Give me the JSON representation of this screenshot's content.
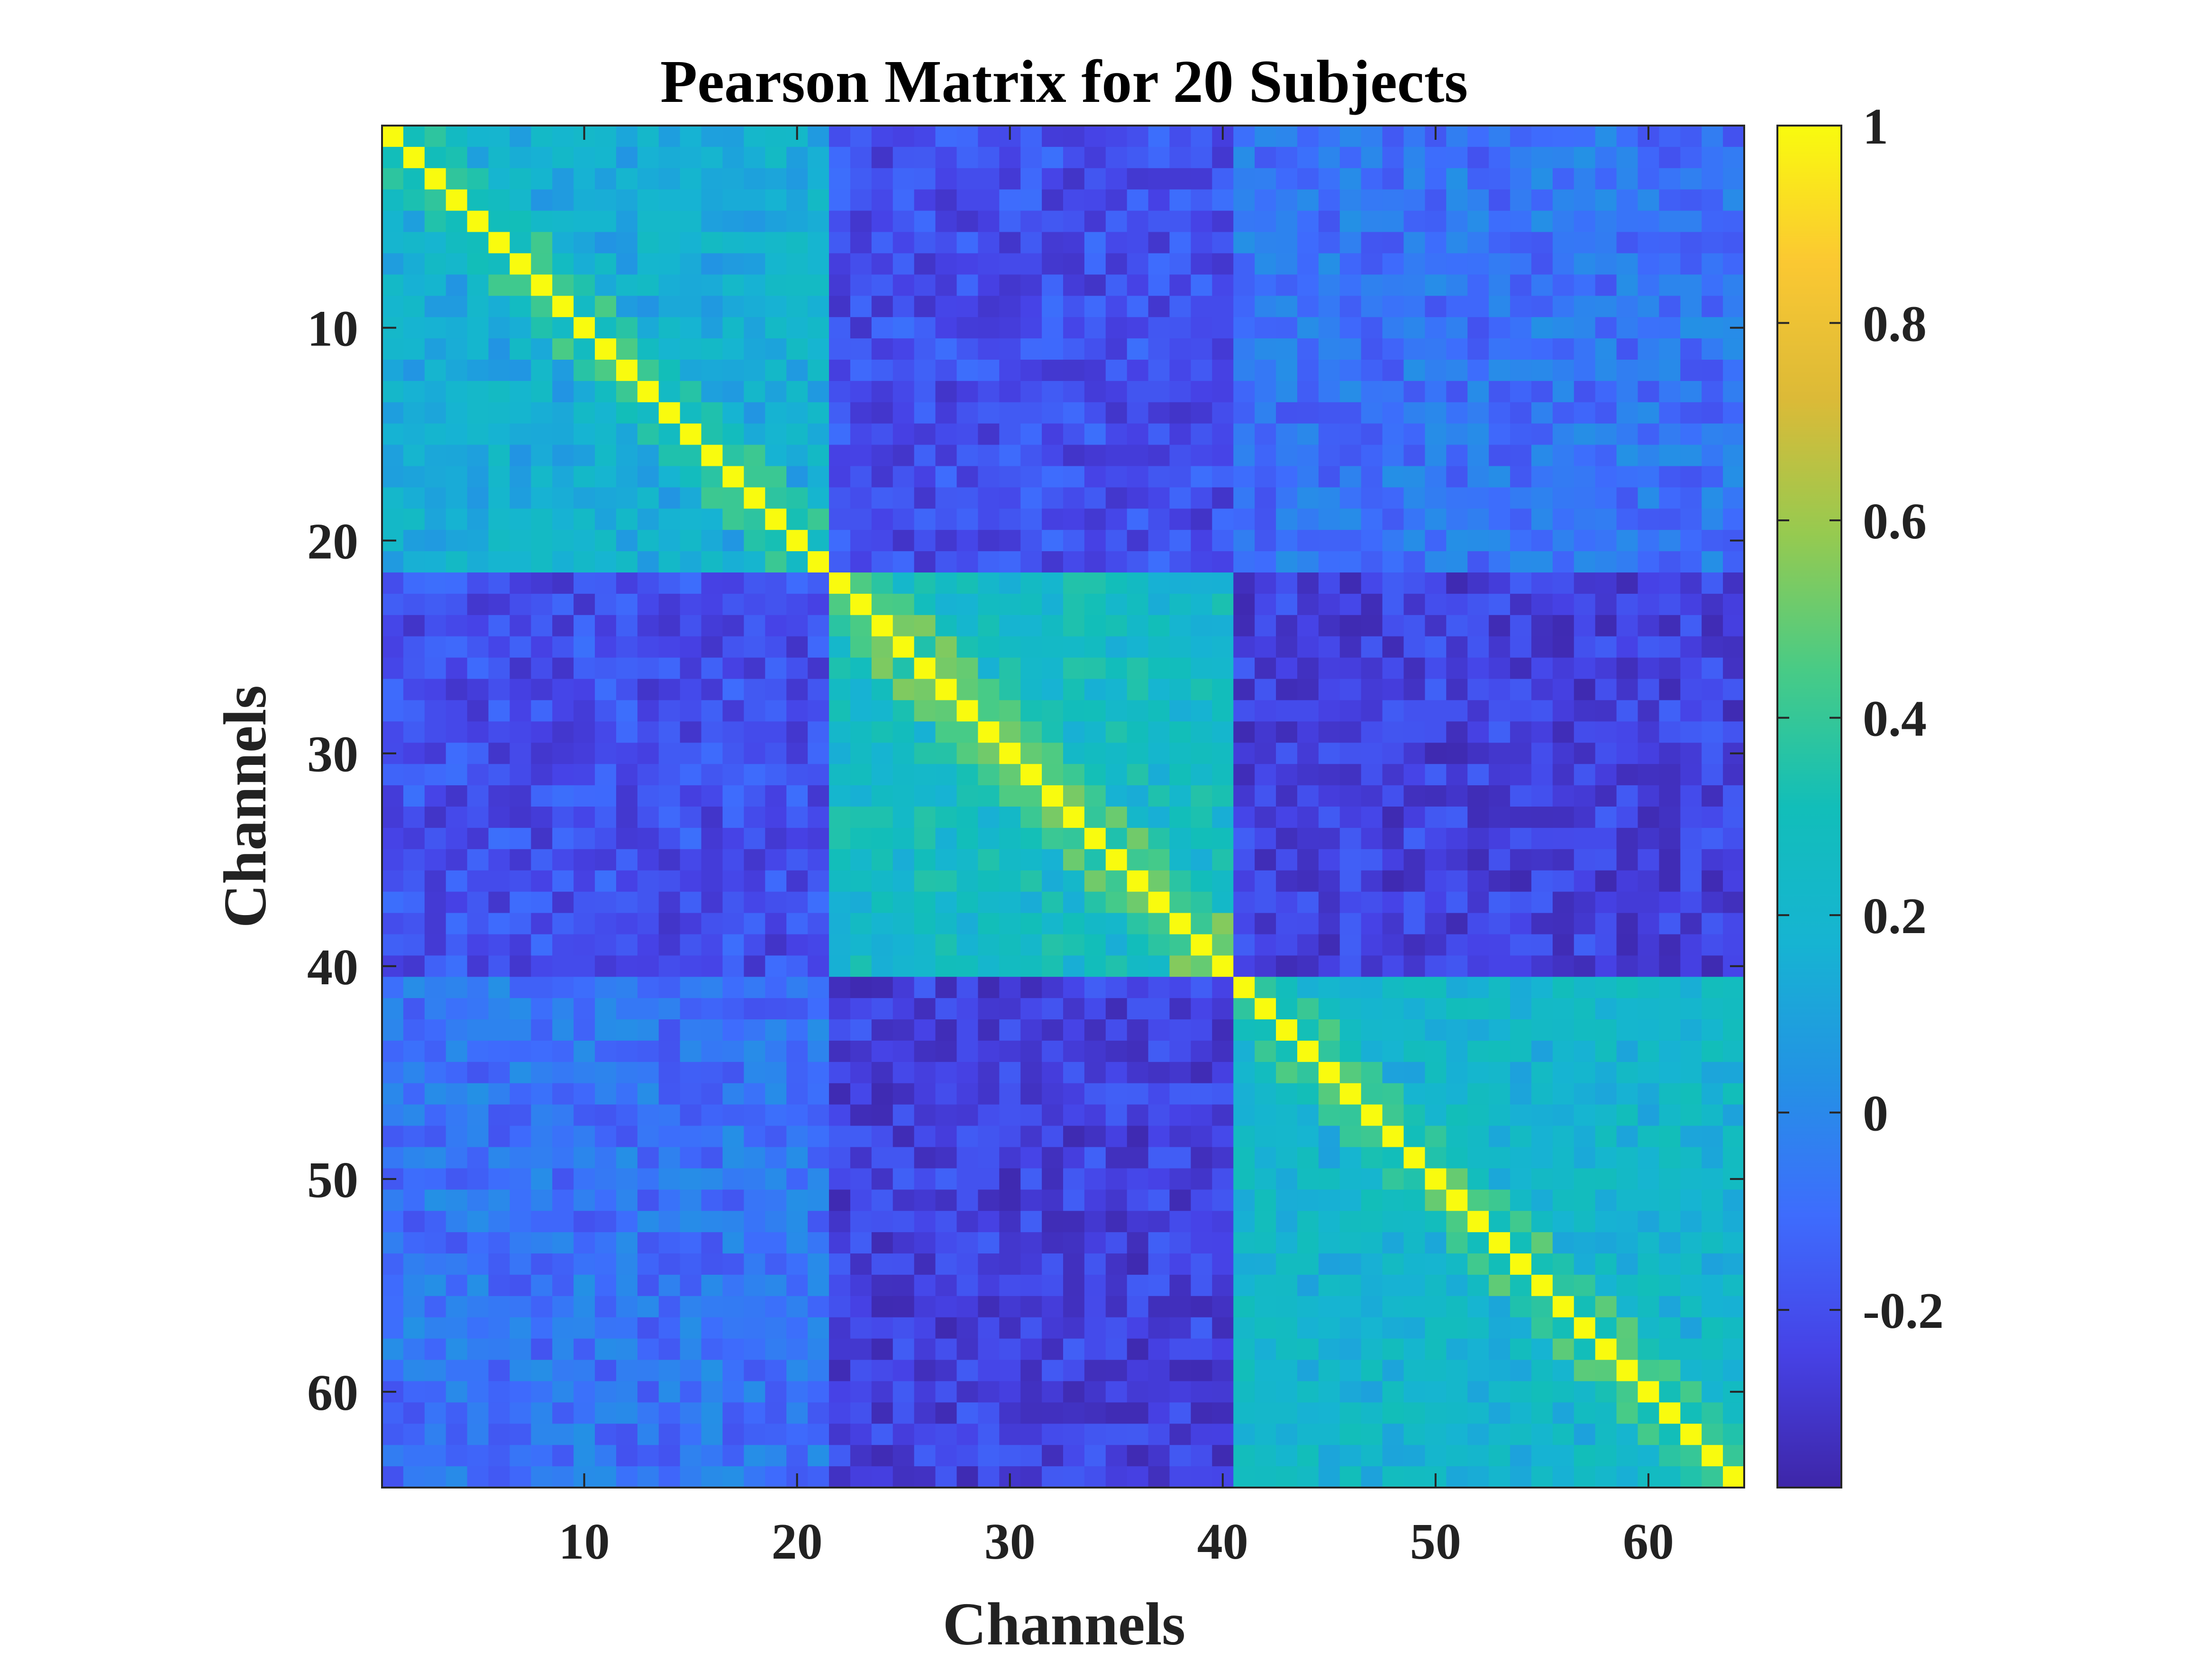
{
  "chart_data": {
    "type": "heatmap",
    "title": "Pearson Matrix for 20 Subjects",
    "xlabel": "Channels",
    "ylabel": "Channels",
    "n_channels": 64,
    "x_ticks": [
      10,
      20,
      30,
      40,
      50,
      60
    ],
    "y_ticks": [
      10,
      20,
      30,
      40,
      50,
      60
    ],
    "colorbar": {
      "colormap": "parula",
      "range": [
        -0.38,
        1
      ],
      "ticks": [
        1,
        0.8,
        0.6,
        0.4,
        0.2,
        0,
        -0.2
      ],
      "tick_labels": [
        "1",
        "0.8",
        "0.6",
        "0.4",
        "0.2",
        "0",
        "-0.2"
      ]
    },
    "blocks": [
      {
        "channels": [
          1,
          21
        ],
        "within_correlation": 0.15
      },
      {
        "channels": [
          22,
          40
        ],
        "within_correlation": 0.25
      },
      {
        "channels": [
          41,
          64
        ],
        "within_correlation": 0.2
      }
    ],
    "between_block_correlation": [
      [
        0.15,
        -0.2,
        -0.08
      ],
      [
        -0.2,
        0.25,
        -0.25
      ],
      [
        -0.08,
        -0.25,
        0.2
      ]
    ],
    "diagonal_value": 1
  }
}
